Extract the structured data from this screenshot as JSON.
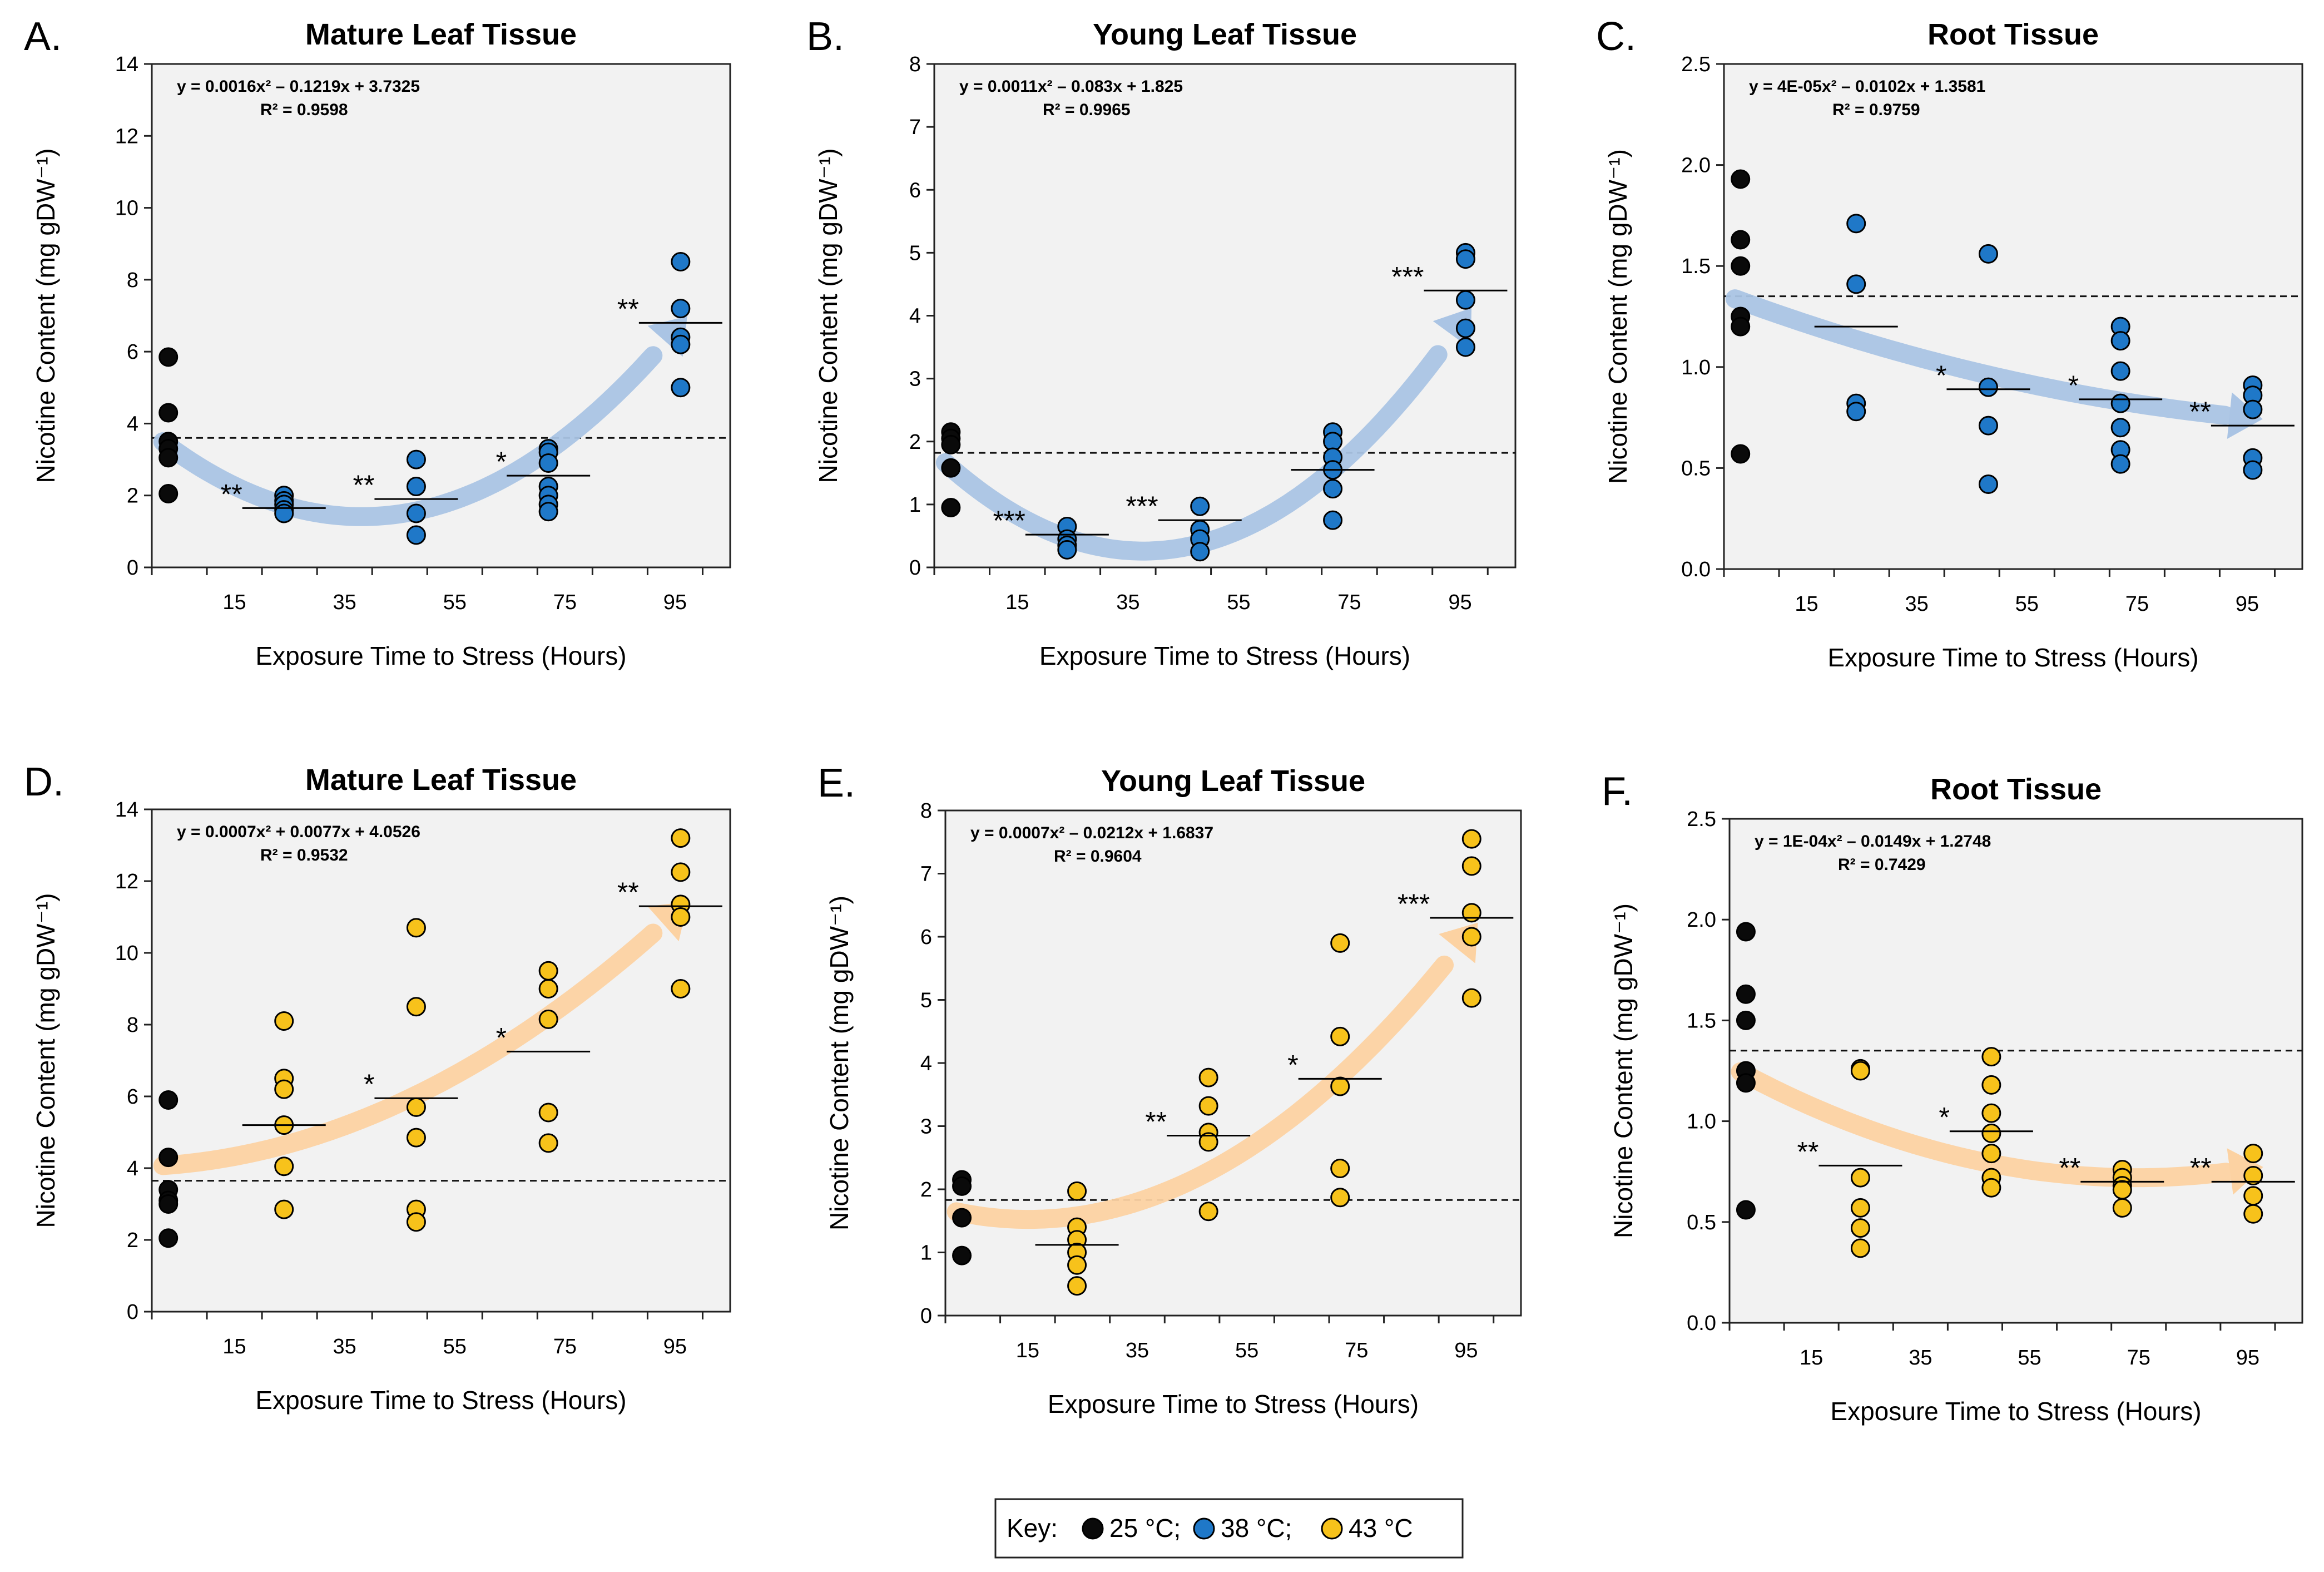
{
  "colors": {
    "c25": "#0a0a0a",
    "c38": "#1f78c8",
    "c43": "#f7c21b",
    "arrow_blue": "#aac4e4",
    "arrow_orange": "#fcd2a2",
    "plot_bg": "#f2f2f2"
  },
  "chart_data": [
    {
      "type": "scatter",
      "panel": "A.",
      "title": "Mature Leaf Tissue",
      "xlabel": "Exposure Time to Stress (Hours)",
      "ylabel": "Nicotine Content (mg gDW⁻¹)",
      "equation": "y = 0.0016x² – 0.1219x + 3.7325",
      "r2": "R² = 0.9598",
      "xlim": [
        0,
        105
      ],
      "ylim": [
        0,
        14
      ],
      "yticks": [
        0,
        2,
        4,
        6,
        8,
        10,
        12,
        14
      ],
      "ytick_labels": [
        "0",
        "2",
        "4",
        "6",
        "8",
        "10",
        "12",
        "14"
      ],
      "xticks": [
        15,
        35,
        55,
        75,
        95
      ],
      "xtick_labels": [
        "15",
        "35",
        "55",
        "75",
        "95"
      ],
      "control_mean": 3.6,
      "fit": {
        "a": 0.0016,
        "b": -0.1219,
        "c": 3.7325,
        "x_from": 2,
        "x_to": 96
      },
      "arrow_color": "blue",
      "series": [
        {
          "name": "25 °C",
          "color": "black",
          "x": 3,
          "values": [
            5.85,
            4.3,
            3.5,
            3.3,
            3.05,
            2.05
          ]
        },
        {
          "name": "38 °C",
          "color": "blue",
          "groups": [
            {
              "x": 24,
              "values": [
                2.0,
                1.85,
                1.75,
                1.6,
                1.5
              ],
              "mean": 1.65,
              "sig": "**"
            },
            {
              "x": 48,
              "values": [
                3.0,
                2.25,
                1.5,
                0.9
              ],
              "mean": 1.9,
              "sig": "**"
            },
            {
              "x": 72,
              "values": [
                3.3,
                3.2,
                2.9,
                2.25,
                2.0,
                1.75,
                1.55
              ],
              "mean": 2.55,
              "sig": "*"
            },
            {
              "x": 96,
              "values": [
                8.5,
                7.2,
                6.4,
                6.2,
                5.0
              ],
              "mean": 6.8,
              "sig": "**"
            }
          ]
        }
      ]
    },
    {
      "type": "scatter",
      "panel": "B.",
      "title": "Young Leaf Tissue",
      "xlabel": "Exposure Time to Stress (Hours)",
      "ylabel": "Nicotine Content (mg gDW⁻¹)",
      "equation": "y = 0.0011x² – 0.083x + 1.825",
      "r2": "R² = 0.9965",
      "xlim": [
        0,
        105
      ],
      "ylim": [
        0,
        8
      ],
      "yticks": [
        0,
        1,
        2,
        3,
        4,
        5,
        6,
        7,
        8
      ],
      "ytick_labels": [
        "0",
        "1",
        "2",
        "3",
        "4",
        "5",
        "6",
        "7",
        "8"
      ],
      "xticks": [
        15,
        35,
        55,
        75,
        95
      ],
      "xtick_labels": [
        "15",
        "35",
        "55",
        "75",
        "95"
      ],
      "control_mean": 1.82,
      "fit": {
        "a": 0.0011,
        "b": -0.083,
        "c": 1.825,
        "x_from": 2,
        "x_to": 96
      },
      "arrow_color": "blue",
      "series": [
        {
          "name": "25 °C",
          "color": "black",
          "x": 3,
          "values": [
            2.15,
            2.05,
            1.95,
            1.58,
            0.95
          ]
        },
        {
          "name": "38 °C",
          "color": "blue",
          "groups": [
            {
              "x": 24,
              "values": [
                0.65,
                0.45,
                0.35,
                0.28
              ],
              "mean": 0.52,
              "sig": "***"
            },
            {
              "x": 48,
              "values": [
                0.97,
                0.6,
                0.45,
                0.25
              ],
              "mean": 0.75,
              "sig": "***"
            },
            {
              "x": 72,
              "values": [
                2.15,
                2.0,
                1.75,
                1.55,
                1.25,
                0.75
              ],
              "mean": 1.55,
              "sig": ""
            },
            {
              "x": 96,
              "values": [
                5.0,
                4.9,
                4.25,
                3.8,
                3.5
              ],
              "mean": 4.4,
              "sig": "***"
            }
          ]
        }
      ]
    },
    {
      "type": "scatter",
      "panel": "C.",
      "title": "Root Tissue",
      "xlabel": "Exposure Time to Stress (Hours)",
      "ylabel": "Nicotine Content (mg gDW⁻¹)",
      "equation": "y = 4E-05x² – 0.0102x + 1.3581",
      "r2": "R² = 0.9759",
      "xlim": [
        0,
        105
      ],
      "ylim": [
        0,
        2.5
      ],
      "yticks": [
        0,
        0.5,
        1.0,
        1.5,
        2.0,
        2.5
      ],
      "ytick_labels": [
        "0.0",
        "0.5",
        "1.0",
        "1.5",
        "2.0",
        "2.5"
      ],
      "xticks": [
        15,
        35,
        55,
        75,
        95
      ],
      "xtick_labels": [
        "15",
        "35",
        "55",
        "75",
        "95"
      ],
      "control_mean": 1.35,
      "fit": {
        "a": 4e-05,
        "b": -0.0102,
        "c": 1.3581,
        "x_from": 2,
        "x_to": 96
      },
      "arrow_color": "blue",
      "series": [
        {
          "name": "25 °C",
          "color": "black",
          "x": 3,
          "values": [
            1.93,
            1.63,
            1.5,
            1.25,
            1.2,
            0.57
          ]
        },
        {
          "name": "38 °C",
          "color": "blue",
          "groups": [
            {
              "x": 24,
              "values": [
                1.71,
                1.41,
                0.82,
                0.78
              ],
              "mean": 1.2,
              "sig": ""
            },
            {
              "x": 48,
              "values": [
                1.56,
                0.9,
                0.71,
                0.42
              ],
              "mean": 0.89,
              "sig": "*"
            },
            {
              "x": 72,
              "values": [
                1.2,
                1.13,
                0.98,
                0.82,
                0.7,
                0.59,
                0.52
              ],
              "mean": 0.84,
              "sig": "*"
            },
            {
              "x": 96,
              "values": [
                0.91,
                0.86,
                0.79,
                0.55,
                0.49
              ],
              "mean": 0.71,
              "sig": "**"
            }
          ]
        }
      ]
    },
    {
      "type": "scatter",
      "panel": "D.",
      "title": "Mature Leaf Tissue",
      "xlabel": "Exposure Time to Stress (Hours)",
      "ylabel": "Nicotine Content (mg gDW⁻¹)",
      "equation": "y = 0.0007x² + 0.0077x + 4.0526",
      "r2": "R² = 0.9532",
      "xlim": [
        0,
        105
      ],
      "ylim": [
        0,
        14
      ],
      "yticks": [
        0,
        2,
        4,
        6,
        8,
        10,
        12,
        14
      ],
      "ytick_labels": [
        "0",
        "2",
        "4",
        "6",
        "8",
        "10",
        "12",
        "14"
      ],
      "xticks": [
        15,
        35,
        55,
        75,
        95
      ],
      "xtick_labels": [
        "15",
        "35",
        "55",
        "75",
        "95"
      ],
      "control_mean": 3.65,
      "fit": {
        "a": 0.0007,
        "b": 0.0077,
        "c": 4.0526,
        "x_from": 2,
        "x_to": 96
      },
      "arrow_color": "orange",
      "series": [
        {
          "name": "25 °C",
          "color": "black",
          "x": 3,
          "values": [
            5.9,
            4.3,
            3.4,
            3.1,
            3.0,
            2.05
          ]
        },
        {
          "name": "43 °C",
          "color": "yellow",
          "groups": [
            {
              "x": 24,
              "values": [
                8.1,
                6.5,
                6.2,
                5.2,
                4.05,
                2.85
              ],
              "mean": 5.2,
              "sig": ""
            },
            {
              "x": 48,
              "values": [
                10.7,
                8.5,
                5.7,
                4.85,
                2.85,
                2.5
              ],
              "mean": 5.95,
              "sig": "*"
            },
            {
              "x": 72,
              "values": [
                9.5,
                9.0,
                8.15,
                5.55,
                4.7
              ],
              "mean": 7.25,
              "sig": "*"
            },
            {
              "x": 96,
              "values": [
                13.2,
                12.25,
                11.35,
                11.0,
                9.0
              ],
              "mean": 11.3,
              "sig": "**"
            }
          ]
        }
      ]
    },
    {
      "type": "scatter",
      "panel": "E.",
      "title": "Young Leaf Tissue",
      "xlabel": "Exposure Time to Stress (Hours)",
      "ylabel": "Nicotine Content (mg gDW⁻¹)",
      "equation": "y = 0.0007x² – 0.0212x + 1.6837",
      "r2": "R² = 0.9604",
      "xlim": [
        0,
        105
      ],
      "ylim": [
        0,
        8
      ],
      "yticks": [
        0,
        1,
        2,
        3,
        4,
        5,
        6,
        7,
        8
      ],
      "ytick_labels": [
        "0",
        "1",
        "2",
        "3",
        "4",
        "5",
        "6",
        "7",
        "8"
      ],
      "xticks": [
        15,
        35,
        55,
        75,
        95
      ],
      "xtick_labels": [
        "15",
        "35",
        "55",
        "75",
        "95"
      ],
      "control_mean": 1.83,
      "fit": {
        "a": 0.0007,
        "b": -0.0212,
        "c": 1.6837,
        "x_from": 2,
        "x_to": 96
      },
      "arrow_color": "orange",
      "series": [
        {
          "name": "25 °C",
          "color": "black",
          "x": 3,
          "values": [
            2.15,
            2.05,
            1.55,
            0.95
          ]
        },
        {
          "name": "43 °C",
          "color": "yellow",
          "groups": [
            {
              "x": 24,
              "values": [
                1.97,
                1.4,
                1.2,
                1.0,
                0.8,
                0.47
              ],
              "mean": 1.12,
              "sig": ""
            },
            {
              "x": 48,
              "values": [
                3.77,
                3.32,
                2.9,
                2.75,
                1.65
              ],
              "mean": 2.85,
              "sig": "**"
            },
            {
              "x": 72,
              "values": [
                5.9,
                4.42,
                3.63,
                2.33,
                1.87
              ],
              "mean": 3.75,
              "sig": "*"
            },
            {
              "x": 96,
              "values": [
                7.55,
                7.12,
                6.38,
                6.0,
                5.03
              ],
              "mean": 6.3,
              "sig": "***"
            }
          ]
        }
      ]
    },
    {
      "type": "scatter",
      "panel": "F.",
      "title": "Root Tissue",
      "xlabel": "Exposure Time to Stress (Hours)",
      "ylabel": "Nicotine Content (mg gDW⁻¹)",
      "equation": "y = 1E-04x² – 0.0149x + 1.2748",
      "r2": "R² = 0.7429",
      "xlim": [
        0,
        105
      ],
      "ylim": [
        0,
        2.5
      ],
      "yticks": [
        0,
        0.5,
        1.0,
        1.5,
        2.0,
        2.5
      ],
      "ytick_labels": [
        "0.0",
        "0.5",
        "1.0",
        "1.5",
        "2.0",
        "2.5"
      ],
      "xticks": [
        15,
        35,
        55,
        75,
        95
      ],
      "xtick_labels": [
        "15",
        "35",
        "55",
        "75",
        "95"
      ],
      "control_mean": 1.35,
      "fit": {
        "a": 0.0001,
        "b": -0.0149,
        "c": 1.2748,
        "x_from": 2,
        "x_to": 96
      },
      "arrow_color": "orange",
      "series": [
        {
          "name": "25 °C",
          "color": "black",
          "x": 3,
          "values": [
            1.94,
            1.63,
            1.5,
            1.25,
            1.19,
            0.56
          ]
        },
        {
          "name": "43 °C",
          "color": "yellow",
          "groups": [
            {
              "x": 24,
              "values": [
                1.26,
                1.25,
                0.72,
                0.57,
                0.47,
                0.37
              ],
              "mean": 0.78,
              "sig": "**"
            },
            {
              "x": 48,
              "values": [
                1.32,
                1.18,
                1.04,
                0.94,
                0.84,
                0.72,
                0.67
              ],
              "mean": 0.95,
              "sig": "*"
            },
            {
              "x": 72,
              "values": [
                0.76,
                0.72,
                0.68,
                0.66,
                0.57
              ],
              "mean": 0.7,
              "sig": "**"
            },
            {
              "x": 96,
              "values": [
                0.84,
                0.73,
                0.63,
                0.54
              ],
              "mean": 0.7,
              "sig": "**"
            }
          ]
        }
      ]
    }
  ],
  "key": {
    "prefix": "Key:",
    "items": [
      {
        "label": "25 °C;",
        "color": "black"
      },
      {
        "label": "38 °C;",
        "color": "blue"
      },
      {
        "label": "43 °C",
        "color": "yellow"
      }
    ]
  }
}
